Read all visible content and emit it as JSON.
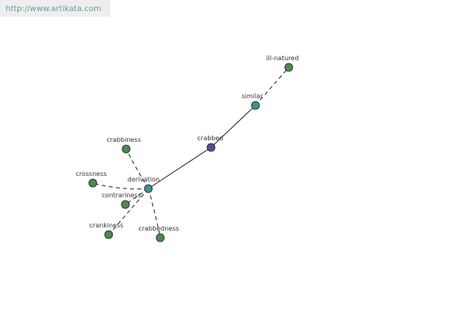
{
  "header": {
    "url": "http://www.artikata.com"
  },
  "nodes": [
    {
      "label": "crabbed"
    },
    {
      "label": "similar"
    },
    {
      "label": "ill-natured"
    },
    {
      "label": "derivation"
    },
    {
      "label": "crabbiness"
    },
    {
      "label": "crossness"
    },
    {
      "label": "contrariness"
    },
    {
      "label": "crankiness"
    },
    {
      "label": "crabbedness"
    }
  ]
}
